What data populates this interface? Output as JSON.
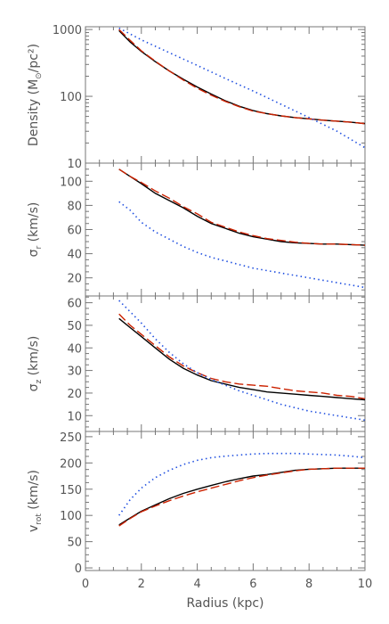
{
  "chart_data": [
    {
      "type": "line",
      "ylabel_prefix": "Density (M",
      "ylabel_sub": "⊙",
      "ylabel_suffix": "/pc²)",
      "yscale": "log",
      "ylim": [
        10,
        1100
      ],
      "xlim": [
        0,
        10
      ],
      "yticks": [
        10,
        100,
        1000
      ],
      "series": [
        {
          "color": "#000000",
          "dash": "solid",
          "x": [
            1.2,
            1.6,
            2,
            2.5,
            3,
            3.5,
            4,
            4.5,
            5,
            5.5,
            6,
            6.5,
            7,
            7.5,
            8,
            8.5,
            9,
            9.5,
            10
          ],
          "y": [
            960,
            650,
            470,
            330,
            240,
            180,
            138,
            108,
            86,
            71,
            61,
            55,
            51,
            48,
            46,
            44,
            42.5,
            41,
            39
          ]
        },
        {
          "color": "#cc2200",
          "dash": "dashed",
          "x": [
            1.2,
            1.6,
            2,
            2.5,
            3,
            3.5,
            4,
            4.5,
            5,
            5.5,
            6,
            6.5,
            7,
            7.5,
            8,
            8.5,
            9,
            9.5,
            10
          ],
          "y": [
            1000,
            690,
            480,
            335,
            240,
            175,
            132,
            104,
            84,
            70,
            60,
            55,
            51,
            48,
            46,
            44,
            42.5,
            41,
            39
          ]
        },
        {
          "color": "#1f4fe0",
          "dash": "dotted",
          "x": [
            1.2,
            2,
            3,
            4,
            5,
            6,
            7,
            8,
            9,
            10
          ],
          "y": [
            1050,
            700,
            450,
            290,
            185,
            120,
            76,
            48,
            30,
            17
          ]
        }
      ]
    },
    {
      "type": "line",
      "ylabel_prefix": "σ",
      "ylabel_sub": "r",
      "ylabel_suffix": " (km/s)",
      "yscale": "linear",
      "ylim": [
        5,
        115
      ],
      "xlim": [
        0,
        10
      ],
      "yticks": [
        20,
        40,
        60,
        80,
        100
      ],
      "series": [
        {
          "color": "#000000",
          "dash": "solid",
          "x": [
            1.2,
            1.6,
            2,
            2.5,
            3,
            3.5,
            4,
            4.5,
            5,
            5.5,
            6,
            6.5,
            7,
            7.5,
            8,
            8.5,
            9,
            9.5,
            10
          ],
          "y": [
            110,
            104,
            98,
            90,
            84,
            78,
            71,
            65,
            61,
            57,
            54,
            52,
            50,
            49,
            48.5,
            48,
            48,
            47.5,
            47
          ]
        },
        {
          "color": "#cc2200",
          "dash": "dashed",
          "x": [
            1.2,
            1.6,
            2,
            2.5,
            3,
            3.5,
            4,
            4.5,
            5,
            5.5,
            6,
            6.5,
            7,
            7.5,
            8,
            8.5,
            9,
            9.5,
            10
          ],
          "y": [
            110,
            104,
            99,
            92,
            86,
            79,
            73,
            66,
            62,
            58,
            55,
            52.5,
            51,
            49.5,
            48.5,
            48,
            48,
            47.5,
            47
          ]
        },
        {
          "color": "#1f4fe0",
          "dash": "dotted",
          "x": [
            1.2,
            1.6,
            2,
            2.5,
            3,
            3.5,
            4,
            4.5,
            5,
            5.5,
            6,
            6.5,
            7,
            7.5,
            8,
            8.5,
            9,
            9.5,
            10
          ],
          "y": [
            83,
            76,
            66,
            58,
            52,
            46,
            41,
            37,
            34,
            31,
            28,
            26,
            24,
            22,
            20,
            18,
            16,
            14,
            12
          ]
        }
      ]
    },
    {
      "type": "line",
      "ylabel_prefix": "σ",
      "ylabel_sub": "z",
      "ylabel_suffix": " (km/s)",
      "yscale": "linear",
      "ylim": [
        3,
        63
      ],
      "xlim": [
        0,
        10
      ],
      "yticks": [
        10,
        20,
        30,
        40,
        50,
        60
      ],
      "series": [
        {
          "color": "#000000",
          "dash": "solid",
          "x": [
            1.2,
            1.6,
            2,
            2.5,
            3,
            3.5,
            4,
            4.5,
            5,
            5.5,
            6,
            6.5,
            7,
            7.5,
            8,
            8.5,
            9,
            9.5,
            10
          ],
          "y": [
            53,
            49,
            45,
            40,
            35,
            31,
            28,
            25.5,
            24,
            22.5,
            21.5,
            20.5,
            20,
            19.5,
            19,
            18.5,
            18,
            17.5,
            17
          ]
        },
        {
          "color": "#cc2200",
          "dash": "dashed",
          "x": [
            1.2,
            1.6,
            2,
            2.5,
            3,
            3.5,
            4,
            4.5,
            5,
            5.5,
            6,
            6.5,
            7,
            7.5,
            8,
            8.5,
            9,
            9.5,
            10
          ],
          "y": [
            55,
            50,
            46,
            41,
            36,
            32,
            29,
            26.5,
            25,
            24,
            23.5,
            23,
            22,
            21,
            20.5,
            20,
            19,
            18.5,
            17.5
          ]
        },
        {
          "color": "#1f4fe0",
          "dash": "dotted",
          "x": [
            1.2,
            1.6,
            2,
            2.5,
            3,
            3.5,
            4,
            4.5,
            5,
            5.5,
            6,
            6.5,
            7,
            7.5,
            8,
            8.5,
            9,
            9.5,
            10
          ],
          "y": [
            61,
            56,
            51,
            44,
            38,
            33,
            29,
            26,
            23.5,
            21,
            19,
            17,
            15,
            13.5,
            12,
            11,
            10,
            9,
            8
          ]
        }
      ]
    },
    {
      "type": "line",
      "ylabel_prefix": "v",
      "ylabel_sub": "rot",
      "ylabel_suffix": " (km/s)",
      "yscale": "linear",
      "ylim": [
        -5,
        260
      ],
      "xlim": [
        0,
        10
      ],
      "yticks": [
        0,
        50,
        100,
        150,
        200,
        250
      ],
      "xticks": [
        0,
        2,
        4,
        6,
        8,
        10
      ],
      "xlabel": "Radius (kpc)",
      "series": [
        {
          "color": "#000000",
          "dash": "solid",
          "x": [
            1.2,
            1.6,
            2,
            2.5,
            3,
            3.5,
            4,
            4.5,
            5,
            5.5,
            6,
            6.5,
            7,
            7.5,
            8,
            8.5,
            9,
            9.5,
            10
          ],
          "y": [
            82,
            95,
            108,
            120,
            132,
            142,
            150,
            157,
            164,
            170,
            175,
            178,
            182,
            186,
            188,
            189,
            190,
            190,
            190
          ]
        },
        {
          "color": "#cc2200",
          "dash": "dashed",
          "x": [
            1.2,
            1.6,
            2,
            2.5,
            3,
            3.5,
            4,
            4.5,
            5,
            5.5,
            6,
            6.5,
            7,
            7.5,
            8,
            8.5,
            9,
            9.5,
            10
          ],
          "y": [
            80,
            94,
            107,
            118,
            128,
            137,
            145,
            152,
            159,
            166,
            172,
            177,
            181,
            185,
            188,
            189,
            190,
            190,
            190
          ]
        },
        {
          "color": "#1f4fe0",
          "dash": "dotted",
          "x": [
            1.2,
            1.6,
            2,
            2.5,
            3,
            3.5,
            4,
            4.5,
            5,
            5.5,
            6,
            6.5,
            7,
            7.5,
            8,
            8.5,
            9,
            9.5,
            10
          ],
          "y": [
            100,
            130,
            152,
            172,
            186,
            197,
            205,
            210,
            213,
            215,
            217,
            218,
            218,
            218,
            217,
            216,
            215,
            213,
            210
          ]
        }
      ]
    }
  ]
}
